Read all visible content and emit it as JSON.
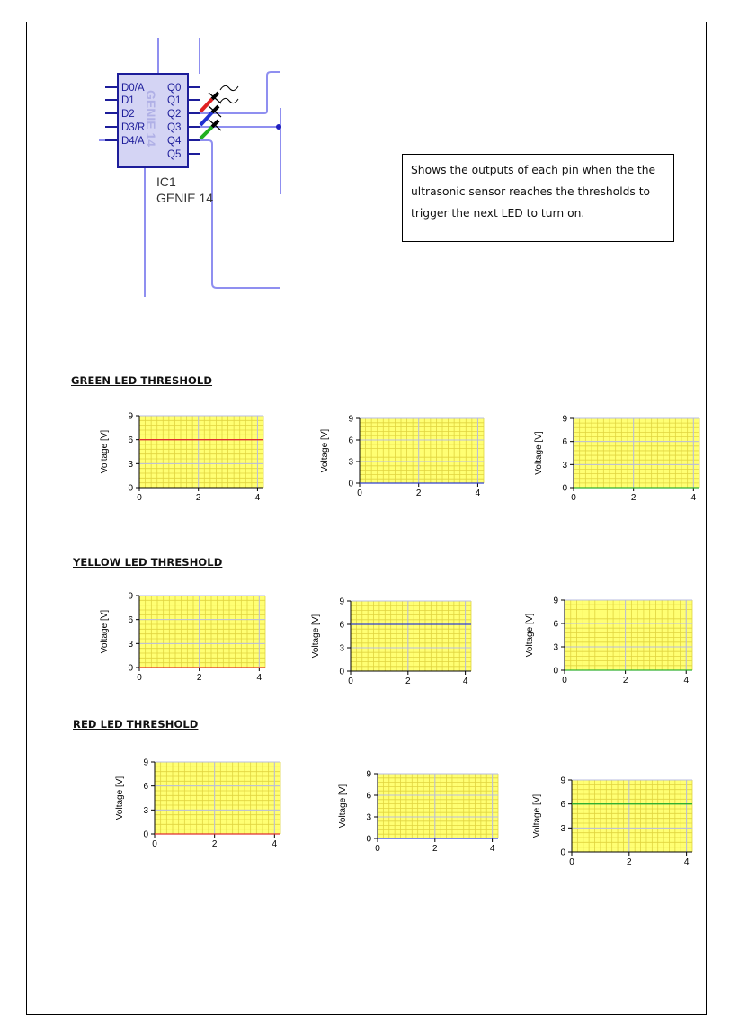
{
  "schematic": {
    "left_pins": [
      "D0/A",
      "D1",
      "D2",
      "D3/R",
      "D4/A"
    ],
    "right_pins": [
      "Q0",
      "Q1",
      "Q2",
      "Q3",
      "Q4",
      "Q5"
    ],
    "watermark": "GENIE 14",
    "ref": "IC1",
    "part": "GENIE 14",
    "colors": {
      "wire": "#8f8ff0",
      "chip_border": "#1d1d9a",
      "chip_fill": "#d4d4f4"
    }
  },
  "description": "Shows the outputs of each pin when the the ultrasonic sensor reaches the thresholds to trigger the next LED to turn on.",
  "sections": [
    {
      "title": "GREEN LED THRESHOLD"
    },
    {
      "title": "YELLOW LED THRESHOLD"
    },
    {
      "title": "RED LED THRESHOLD"
    }
  ],
  "chart_data": [
    {
      "id": "green-red",
      "type": "line",
      "ylabel": "Voltage [V]",
      "yticks": [
        "0",
        "3",
        "6",
        "9"
      ],
      "xticks": [
        "0",
        "2",
        "4"
      ],
      "xlim": [
        0,
        4.2
      ],
      "ylim": [
        0,
        9
      ],
      "series": [
        {
          "color": "#e03030",
          "x": [
            0,
            4.2
          ],
          "y": [
            6,
            6
          ]
        }
      ]
    },
    {
      "id": "green-blue",
      "type": "line",
      "ylabel": "Voltage [V]",
      "yticks": [
        "0",
        "3",
        "6",
        "9"
      ],
      "xticks": [
        "0",
        "2",
        "4"
      ],
      "xlim": [
        0,
        4.2
      ],
      "ylim": [
        0,
        9
      ],
      "series": [
        {
          "color": "#3040d0",
          "x": [
            0,
            4.2
          ],
          "y": [
            0,
            0
          ]
        }
      ]
    },
    {
      "id": "green-green",
      "type": "line",
      "ylabel": "Voltage [V]",
      "yticks": [
        "0",
        "3",
        "6",
        "9"
      ],
      "xticks": [
        "0",
        "2",
        "4"
      ],
      "xlim": [
        0,
        4.2
      ],
      "ylim": [
        0,
        9
      ],
      "series": [
        {
          "color": "#30b030",
          "x": [
            0,
            4.2
          ],
          "y": [
            0,
            0
          ]
        }
      ]
    },
    {
      "id": "yellow-red",
      "type": "line",
      "ylabel": "Voltage [V]",
      "yticks": [
        "0",
        "3",
        "6",
        "9"
      ],
      "xticks": [
        "0",
        "2",
        "4"
      ],
      "xlim": [
        0,
        4.2
      ],
      "ylim": [
        0,
        9
      ],
      "series": [
        {
          "color": "#e03030",
          "x": [
            0,
            4.2
          ],
          "y": [
            0,
            0
          ]
        }
      ]
    },
    {
      "id": "yellow-blue",
      "type": "line",
      "ylabel": "Voltage [V]",
      "yticks": [
        "0",
        "3",
        "6",
        "9"
      ],
      "xticks": [
        "0",
        "2",
        "4"
      ],
      "xlim": [
        0,
        4.2
      ],
      "ylim": [
        0,
        9
      ],
      "series": [
        {
          "color": "#3040d0",
          "x": [
            0,
            4.2
          ],
          "y": [
            6,
            6
          ]
        }
      ]
    },
    {
      "id": "yellow-green",
      "type": "line",
      "ylabel": "Voltage [V]",
      "yticks": [
        "0",
        "3",
        "6",
        "9"
      ],
      "xticks": [
        "0",
        "2",
        "4"
      ],
      "xlim": [
        0,
        4.2
      ],
      "ylim": [
        0,
        9
      ],
      "series": [
        {
          "color": "#30b030",
          "x": [
            0,
            4.2
          ],
          "y": [
            0,
            0
          ]
        }
      ]
    },
    {
      "id": "red-red",
      "type": "line",
      "ylabel": "Voltage [V]",
      "yticks": [
        "0",
        "3",
        "6",
        "9"
      ],
      "xticks": [
        "0",
        "2",
        "4"
      ],
      "xlim": [
        0,
        4.2
      ],
      "ylim": [
        0,
        9
      ],
      "series": [
        {
          "color": "#e03030",
          "x": [
            0,
            4.2
          ],
          "y": [
            0,
            0
          ]
        }
      ]
    },
    {
      "id": "red-blue",
      "type": "line",
      "ylabel": "Voltage [V]",
      "yticks": [
        "0",
        "3",
        "6",
        "9"
      ],
      "xticks": [
        "0",
        "2",
        "4"
      ],
      "xlim": [
        0,
        4.2
      ],
      "ylim": [
        0,
        9
      ],
      "series": [
        {
          "color": "#3040d0",
          "x": [
            0,
            4.2
          ],
          "y": [
            0,
            0
          ]
        }
      ]
    },
    {
      "id": "red-green",
      "type": "line",
      "ylabel": "Voltage [V]",
      "yticks": [
        "0",
        "3",
        "6",
        "9"
      ],
      "xticks": [
        "0",
        "2",
        "4"
      ],
      "xlim": [
        0,
        4.2
      ],
      "ylim": [
        0,
        9
      ],
      "series": [
        {
          "color": "#30b030",
          "x": [
            0,
            4.2
          ],
          "y": [
            6,
            6
          ]
        }
      ]
    }
  ]
}
